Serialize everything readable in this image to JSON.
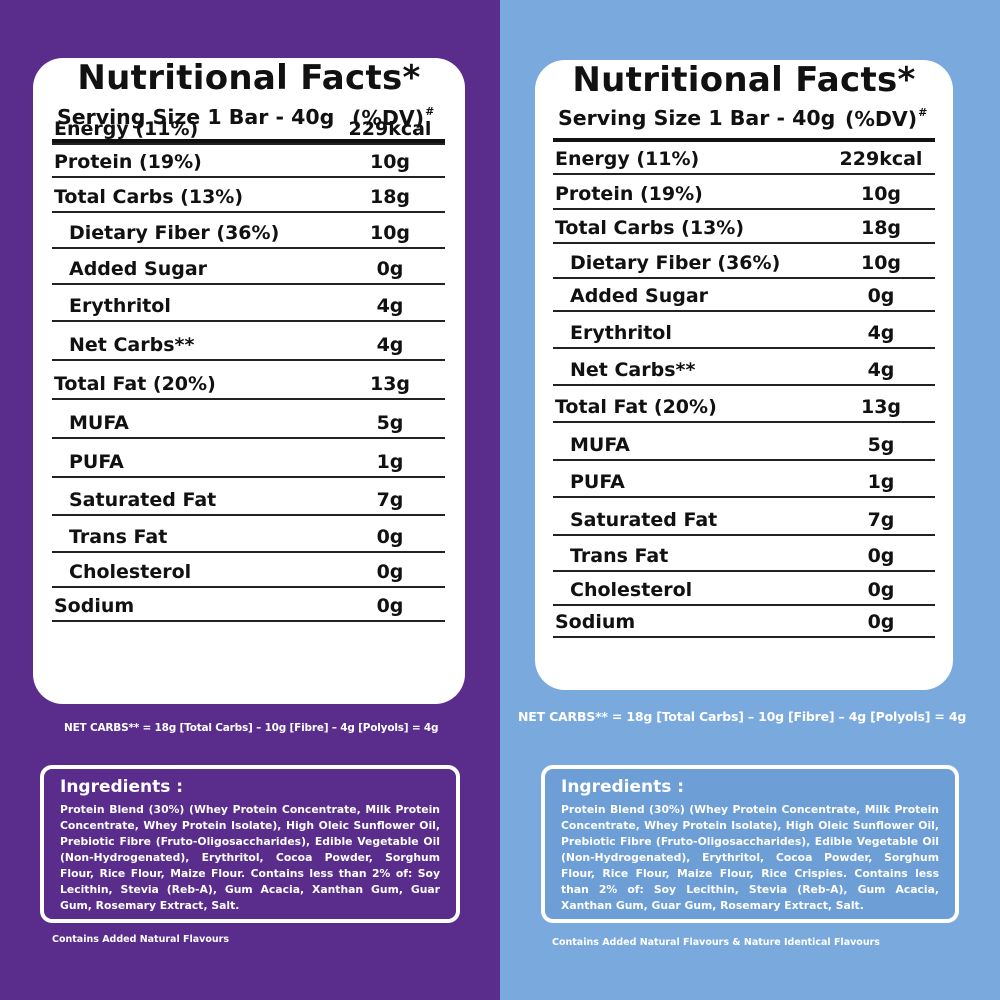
{
  "panels": [
    {
      "title": "Nutritional Facts*",
      "serving": "Serving Size 1 Bar - 40g",
      "dv": "(%DV)",
      "dv_mark": "#",
      "rows": [
        {
          "label": "Energy (11%)",
          "value": "229kcal"
        },
        {
          "label": "Protein (19%)",
          "value": "10g"
        },
        {
          "label": "Total Carbs (13%)",
          "value": "18g"
        },
        {
          "label": "Dietary Fiber (36%)",
          "value": "10g"
        },
        {
          "label": "Added Sugar",
          "value": "0g"
        },
        {
          "label": "Erythritol",
          "value": "4g"
        },
        {
          "label": "Net Carbs**",
          "value": "4g"
        },
        {
          "label": "Total Fat (20%)",
          "value": "13g"
        },
        {
          "label": "MUFA",
          "value": "5g"
        },
        {
          "label": "PUFA",
          "value": "1g"
        },
        {
          "label": "Saturated Fat",
          "value": "7g"
        },
        {
          "label": "Trans Fat",
          "value": "0g"
        },
        {
          "label": "Cholesterol",
          "value": "0g"
        },
        {
          "label": "Sodium",
          "value": "0g"
        }
      ],
      "net_carbs_note": "NET CARBS** = 18g [Total Carbs] – 10g [Fibre] – 4g [Polyols] = 4g",
      "ingredients_title": "Ingredients :",
      "ingredients_text": "Protein Blend (30%) (Whey Protein Concentrate, Milk Protein Concentrate, Whey Protein Isolate), High Oleic Sunflower Oil, Prebiotic Fibre (Fruto-Oligosaccharides), Edible Vegetable Oil (Non-Hydrogenated), Erythritol, Cocoa Powder, Sorghum Flour, Rice Flour, Maize Flour. Contains less than 2% of: Soy Lecithin, Stevia (Reb-A), Gum Acacia, Xanthan Gum, Guar Gum, Rosemary Extract, Salt.",
      "contains_note": "Contains Added Natural Flavours"
    },
    {
      "title": "Nutritional Facts*",
      "serving": "Serving Size 1 Bar - 40g",
      "dv": "(%DV)",
      "dv_mark": "#",
      "rows": [
        {
          "label": "Energy (11%)",
          "value": "229kcal"
        },
        {
          "label": "Protein (19%)",
          "value": "10g"
        },
        {
          "label": "Total Carbs (13%)",
          "value": "18g"
        },
        {
          "label": "Dietary Fiber (36%)",
          "value": "10g"
        },
        {
          "label": "Added Sugar",
          "value": "0g"
        },
        {
          "label": "Erythritol",
          "value": "4g"
        },
        {
          "label": "Net Carbs**",
          "value": "4g"
        },
        {
          "label": "Total Fat (20%)",
          "value": "13g"
        },
        {
          "label": "MUFA",
          "value": "5g"
        },
        {
          "label": "PUFA",
          "value": "1g"
        },
        {
          "label": "Saturated Fat",
          "value": "7g"
        },
        {
          "label": "Trans Fat",
          "value": "0g"
        },
        {
          "label": "Cholesterol",
          "value": "0g"
        },
        {
          "label": "Sodium",
          "value": "0g"
        }
      ],
      "net_carbs_note": "NET CARBS** = 18g [Total Carbs] – 10g [Fibre] – 4g [Polyols] = 4g",
      "ingredients_title": "Ingredients :",
      "ingredients_text": "Protein Blend (30%) (Whey Protein Concentrate, Milk Protein Concentrate, Whey Protein Isolate), High Oleic Sunflower Oil, Prebiotic Fibre (Fruto-Oligosaccharides), Edible Vegetable Oil (Non-Hydrogenated), Erythritol, Cocoa Powder, Sorghum Flour, Rice Flour, Maize Flour, Rice Crispies. Contains less than 2% of: Soy Lecithin, Stevia (Reb-A), Gum Acacia, Xanthan Gum, Guar Gum, Rosemary Extract, Salt.",
      "contains_note": "Contains Added Natural Flavours & Nature Identical Flavours"
    }
  ],
  "colors": {
    "left_background": "#5a2d8c",
    "right_background": "#7aaadd",
    "card": "#ffffff",
    "text": "#111111"
  }
}
